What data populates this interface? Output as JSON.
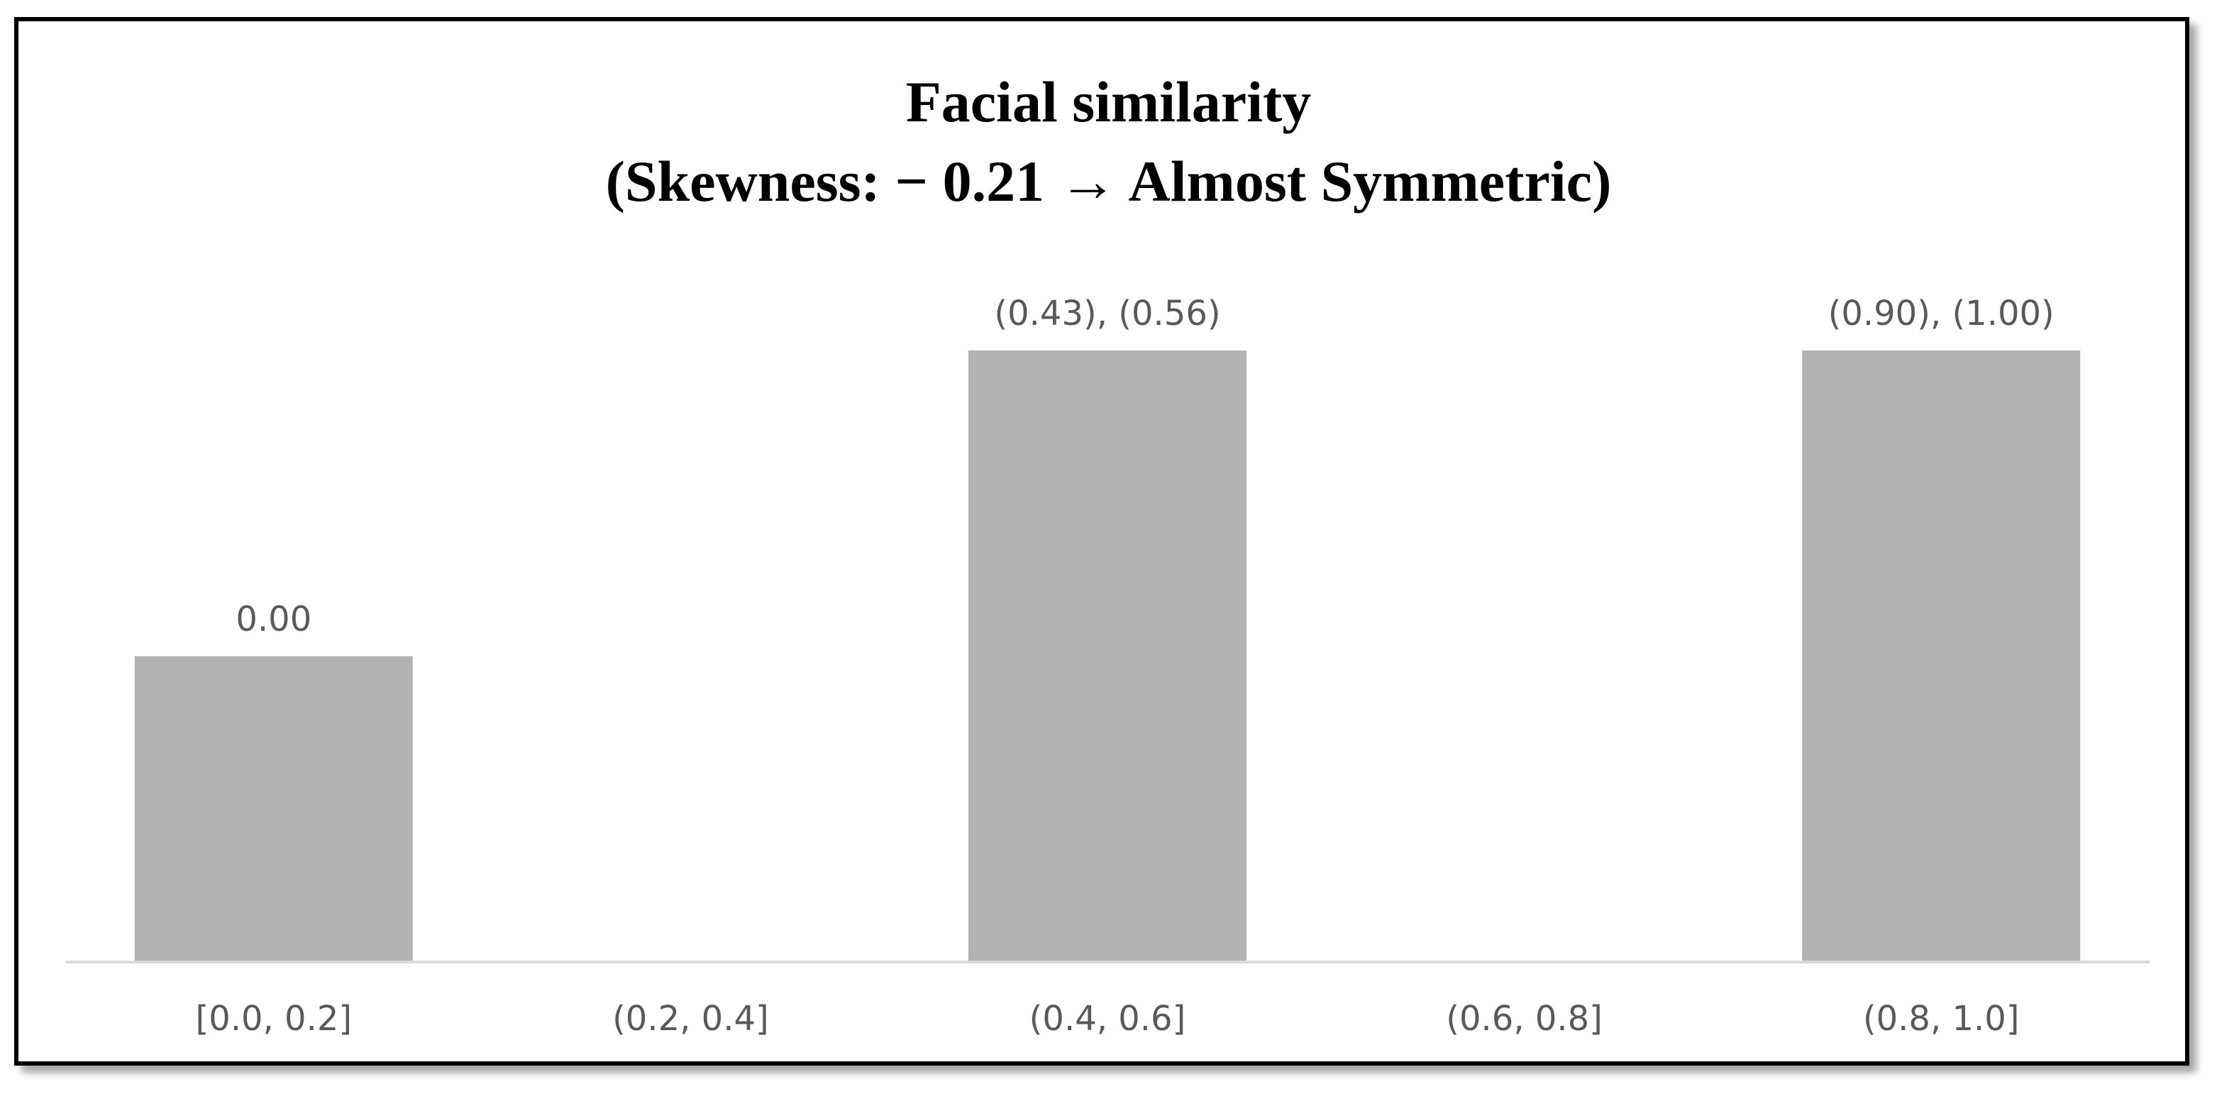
{
  "chart_data": {
    "type": "bar",
    "title": "Facial similarity",
    "subtitle": "(Skewness: − 0.21 → Almost Symmetric)",
    "categories": [
      "[0.0, 0.2]",
      "(0.2, 0.4]",
      "(0.4, 0.6]",
      "(0.6, 0.8]",
      "(0.8, 1.0]"
    ],
    "values": [
      1,
      0,
      2,
      0,
      2
    ],
    "data_labels": [
      "0.00",
      "",
      "(0.43), (0.56)",
      "",
      "(0.90), (1.00)"
    ],
    "ylim": [
      0,
      2
    ],
    "grid": false,
    "colors": {
      "bar": "#b3b3b3",
      "axis": "#d9d9d9"
    }
  }
}
